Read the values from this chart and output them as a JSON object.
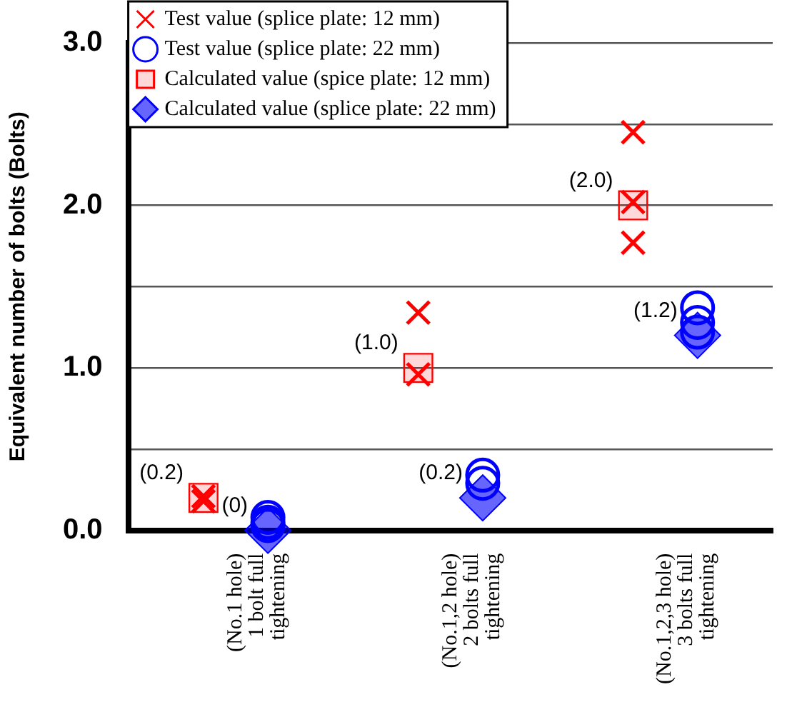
{
  "chart_data": {
    "type": "scatter",
    "ylabel": "Equivalent number of bolts (Bolts)",
    "categories": [
      "(No.1 hole)\n1 bolt full\ntightening",
      "(No.1,2 hole)\n2 bolts full\ntightening",
      "(No.1,2,3 hole)\n3 bolts full\ntightening"
    ],
    "series": [
      {
        "name": "Test value (splice plate: 12 mm)",
        "color": "#ff0000",
        "marker": "cross",
        "x": [
          "(No.1 hole)\n1 bolt full\ntightening",
          "(No.1 hole)\n1 bolt full\ntightening",
          "(No.1,2 hole)\n2 bolts full\ntightening",
          "(No.1,2 hole)\n2 bolts full\ntightening",
          "(No.1,2,3 hole)\n3 bolts full\ntightening",
          "(No.1,2,3 hole)\n3 bolts full\ntightening",
          "(No.1,2,3 hole)\n3 bolts full\ntightening"
        ],
        "values": [
          0.18,
          0.21,
          1.34,
          0.96,
          2.45,
          2.02,
          1.77
        ]
      },
      {
        "name": "Test value (splice plate: 22 mm)",
        "color": "#0000ff",
        "marker": "circle",
        "x": [
          "(No.1 hole)\n1 bolt full\ntightening",
          "(No.1 hole)\n1 bolt full\ntightening",
          "(No.1 hole)\n1 bolt full\ntightening",
          "(No.1,2 hole)\n2 bolts full\ntightening",
          "(No.1,2 hole)\n2 bolts full\ntightening",
          "(No.1,2,3 hole)\n3 bolts full\ntightening",
          "(No.1,2,3 hole)\n3 bolts full\ntightening",
          "(No.1,2,3 hole)\n3 bolts full\ntightening"
        ],
        "values": [
          0.08,
          0.05,
          0.03,
          0.34,
          0.29,
          1.37,
          1.28,
          1.22
        ]
      },
      {
        "name": "Calculated value (spice plate: 12 mm)",
        "color": "#ff0000",
        "marker": "square",
        "values": [
          0.2,
          1.0,
          2.0
        ],
        "value_labels": [
          "(0.2)",
          "(1.0)",
          "(2.0)"
        ]
      },
      {
        "name": "Calculated value (splice plate: 22 mm)",
        "color": "#0000ff",
        "marker": "diamond",
        "values": [
          0.0,
          0.2,
          1.2
        ],
        "value_labels": [
          "(0)",
          "(0.2)",
          "(1.2)"
        ]
      }
    ],
    "ylim": [
      0,
      3
    ],
    "yticks": [
      {
        "value": 0,
        "label": "0.0"
      },
      {
        "value": 0.5,
        "label": null
      },
      {
        "value": 1,
        "label": "1.0"
      },
      {
        "value": 1.5,
        "label": null
      },
      {
        "value": 2,
        "label": "2.0"
      },
      {
        "value": 2.5,
        "label": null
      },
      {
        "value": 3,
        "label": "3.0"
      }
    ],
    "grid": "y",
    "legend": "top left"
  }
}
